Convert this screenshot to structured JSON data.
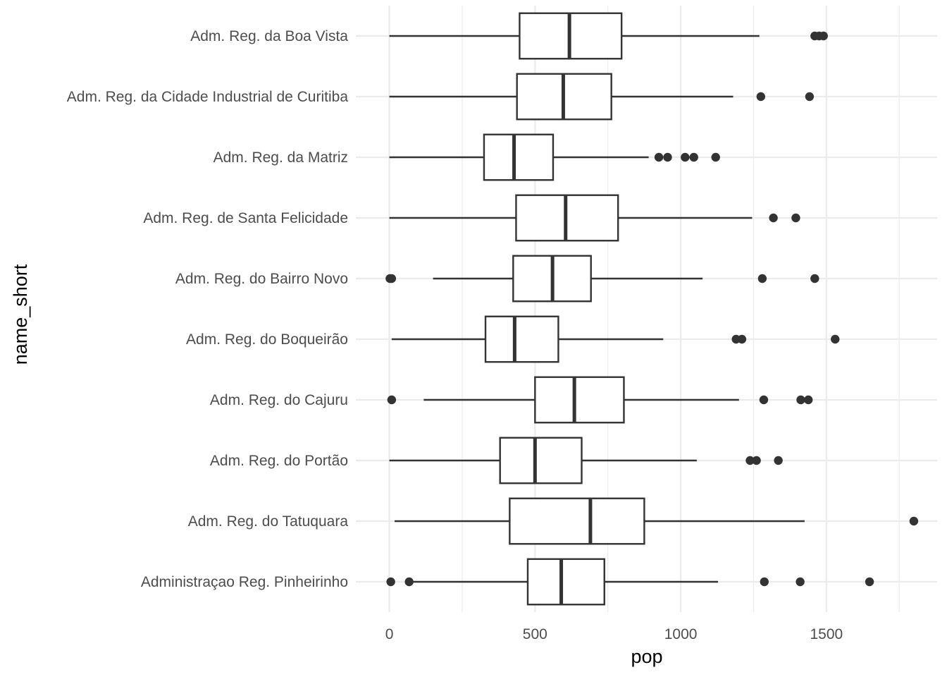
{
  "chart_data": {
    "type": "boxplot",
    "orientation": "horizontal",
    "xlabel": "pop",
    "ylabel": "name_short",
    "xlim": [
      -115,
      1880
    ],
    "x_ticks": [
      0,
      500,
      1000,
      1500
    ],
    "x_tick_labels": [
      "0",
      "500",
      "1000",
      "1500"
    ],
    "x_minor_ticks": [
      250,
      750,
      1250,
      1750
    ],
    "grid": true,
    "legend": "none",
    "colors": {
      "box_line": "#333333",
      "box_fill": "#ffffff",
      "grid": "#ebebeb",
      "point": "#333333"
    },
    "series": [
      {
        "name": "Administraçao Reg. Pinheirinho",
        "whisker_low": 80,
        "q1": 475,
        "median": 590,
        "q3": 738,
        "whisker_high": 1128,
        "outliers": [
          5,
          68,
          1287,
          1410,
          1648
        ]
      },
      {
        "name": "Adm. Reg. do Tatuquara",
        "whisker_low": 18,
        "q1": 413,
        "median": 690,
        "q3": 875,
        "whisker_high": 1425,
        "outliers": [
          1800
        ]
      },
      {
        "name": "Adm. Reg. do Portão",
        "whisker_low": 0,
        "q1": 380,
        "median": 500,
        "q3": 660,
        "whisker_high": 1055,
        "outliers": [
          1238,
          1260,
          1335
        ]
      },
      {
        "name": "Adm. Reg. do Cajuru",
        "whisker_low": 118,
        "q1": 500,
        "median": 635,
        "q3": 805,
        "whisker_high": 1200,
        "outliers": [
          8,
          1285,
          1412,
          1438
        ]
      },
      {
        "name": "Adm. Reg. do Boqueirão",
        "whisker_low": 8,
        "q1": 330,
        "median": 430,
        "q3": 580,
        "whisker_high": 940,
        "outliers": [
          1190,
          1210,
          1530
        ]
      },
      {
        "name": "Adm. Reg. do Bairro Novo",
        "whisker_low": 150,
        "q1": 425,
        "median": 560,
        "q3": 692,
        "whisker_high": 1075,
        "outliers": [
          2,
          8,
          1280,
          1460
        ]
      },
      {
        "name": "Adm. Reg. de Santa Felicidade",
        "whisker_low": 0,
        "q1": 435,
        "median": 605,
        "q3": 785,
        "whisker_high": 1245,
        "outliers": [
          1318,
          1395
        ]
      },
      {
        "name": "Adm. Reg. da Matriz",
        "whisker_low": 0,
        "q1": 325,
        "median": 428,
        "q3": 562,
        "whisker_high": 890,
        "outliers": [
          925,
          955,
          1015,
          1045,
          1120
        ]
      },
      {
        "name": "Adm. Reg. da Cidade Industrial de Curitiba",
        "whisker_low": 0,
        "q1": 438,
        "median": 597,
        "q3": 762,
        "whisker_high": 1180,
        "outliers": [
          1275,
          1442
        ]
      },
      {
        "name": "Adm. Reg. da Boa Vista",
        "whisker_low": 0,
        "q1": 447,
        "median": 618,
        "q3": 797,
        "whisker_high": 1270,
        "outliers": [
          1460,
          1475,
          1490
        ]
      }
    ]
  }
}
